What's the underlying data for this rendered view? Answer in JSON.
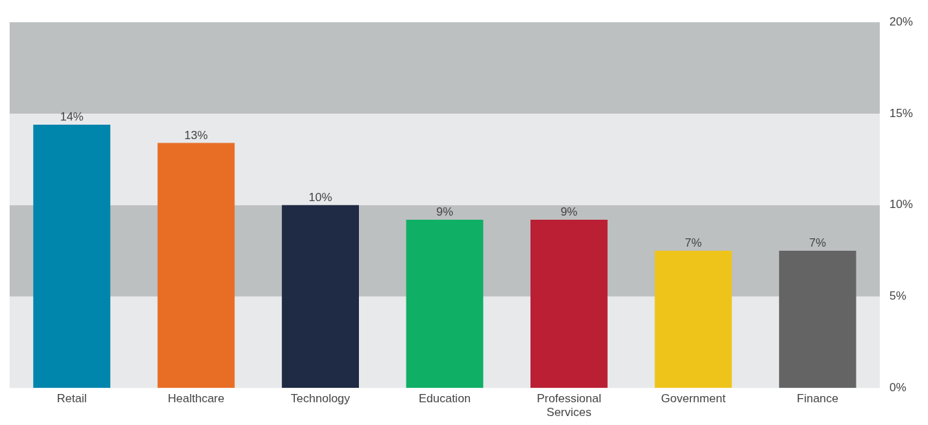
{
  "chart_data": {
    "type": "bar",
    "categories": [
      "Retail",
      "Healthcare",
      "Technology",
      "Education",
      "Professional Services",
      "Government",
      "Finance"
    ],
    "values": [
      14.4,
      13.4,
      10,
      9.2,
      9.2,
      7.5,
      7.5
    ],
    "value_labels": [
      "14%",
      "13%",
      "10%",
      "9%",
      "9%",
      "7%",
      "7%"
    ],
    "colors": [
      "#0085ad",
      "#e86e26",
      "#1f2a44",
      "#0faf66",
      "#bb1f33",
      "#eec41b",
      "#646464"
    ],
    "ylim": [
      0,
      20
    ],
    "yticks": [
      {
        "value": 0,
        "label": "0%"
      },
      {
        "value": 5,
        "label": "5%"
      },
      {
        "value": 10,
        "label": "10%"
      },
      {
        "value": 15,
        "label": "15%"
      },
      {
        "value": 20,
        "label": "20%"
      }
    ],
    "bands": [
      {
        "axis": "y",
        "from": 0,
        "to": 5,
        "color": "#e8e9eb"
      },
      {
        "axis": "y",
        "from": 5,
        "to": 10,
        "color": "#bdc0c1"
      },
      {
        "axis": "y",
        "from": 10,
        "to": 15,
        "color": "#e8e9eb"
      },
      {
        "axis": "y",
        "from": 15,
        "to": 20,
        "color": "#bdc0c1"
      }
    ],
    "grid": false,
    "legend": false
  }
}
